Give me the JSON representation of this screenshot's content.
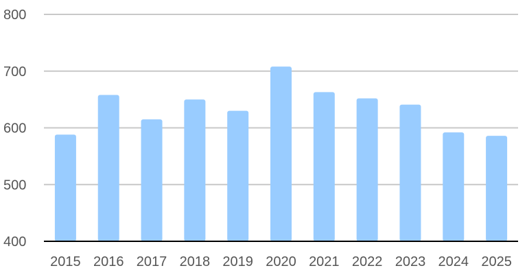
{
  "chart_data": {
    "type": "bar",
    "title": "",
    "xlabel": "",
    "ylabel": "",
    "categories": [
      "2015",
      "2016",
      "2017",
      "2018",
      "2019",
      "2020",
      "2021",
      "2022",
      "2023",
      "2024",
      "2025"
    ],
    "values": [
      588,
      658,
      615,
      650,
      630,
      708,
      663,
      652,
      641,
      592,
      586
    ],
    "ylim": [
      400,
      800
    ],
    "yticks": [
      "400",
      "500",
      "600",
      "700",
      "800"
    ],
    "grid": true,
    "legend": "none",
    "bar_color": "#99CCFF",
    "grid_color": "#C8C8C8",
    "axis_color": "#000000"
  }
}
